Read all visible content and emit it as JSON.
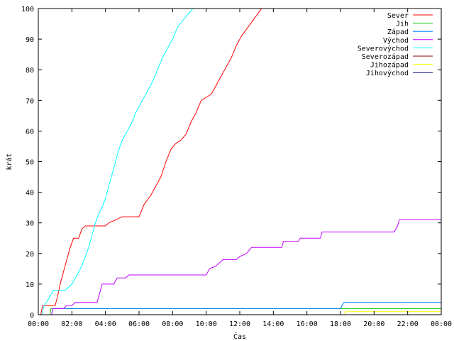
{
  "chart_data": {
    "type": "line",
    "title": "",
    "xlabel": "Čas",
    "ylabel": "krát",
    "xlim": [
      0,
      24
    ],
    "ylim": [
      0,
      100
    ],
    "x_unit": "hours",
    "x_ticks": [
      0,
      2,
      4,
      6,
      8,
      10,
      12,
      14,
      16,
      18,
      20,
      22,
      24
    ],
    "x_tick_labels": [
      "00:00",
      "02:00",
      "04:00",
      "06:00",
      "08:00",
      "10:00",
      "12:00",
      "14:00",
      "16:00",
      "18:00",
      "20:00",
      "22:00",
      "00:00"
    ],
    "y_ticks": [
      0,
      10,
      20,
      30,
      40,
      50,
      60,
      70,
      80,
      90,
      100
    ],
    "y_tick_labels": [
      "0",
      "10",
      "20",
      "30",
      "40",
      "50",
      "60",
      "70",
      "80",
      "90",
      "100"
    ],
    "grid": false,
    "legend_position": "top-right",
    "series": [
      {
        "name": "Sever",
        "color": "#ff0000",
        "points": [
          [
            0.15,
            0
          ],
          [
            0.25,
            3
          ],
          [
            1.0,
            3
          ],
          [
            1.15,
            6
          ],
          [
            1.3,
            10
          ],
          [
            1.5,
            14
          ],
          [
            1.7,
            18
          ],
          [
            1.9,
            22
          ],
          [
            2.1,
            25
          ],
          [
            2.4,
            25
          ],
          [
            2.6,
            28
          ],
          [
            2.8,
            29
          ],
          [
            4.0,
            29
          ],
          [
            4.2,
            30
          ],
          [
            4.6,
            31
          ],
          [
            5.0,
            32
          ],
          [
            6.0,
            32
          ],
          [
            6.3,
            36
          ],
          [
            6.7,
            39
          ],
          [
            7.0,
            42
          ],
          [
            7.3,
            45
          ],
          [
            7.6,
            50
          ],
          [
            7.9,
            54
          ],
          [
            8.2,
            56
          ],
          [
            8.5,
            57
          ],
          [
            8.8,
            59
          ],
          [
            9.1,
            63
          ],
          [
            9.4,
            66
          ],
          [
            9.7,
            70
          ],
          [
            10.0,
            71
          ],
          [
            10.3,
            72
          ],
          [
            10.6,
            75
          ],
          [
            10.9,
            78
          ],
          [
            11.2,
            81
          ],
          [
            11.5,
            84
          ],
          [
            11.8,
            88
          ],
          [
            12.1,
            91
          ],
          [
            12.5,
            94
          ],
          [
            12.9,
            97
          ],
          [
            13.3,
            100
          ],
          [
            13.5,
            100
          ]
        ]
      },
      {
        "name": "Jih",
        "color": "#00c000",
        "points": [
          [
            0.7,
            0
          ],
          [
            0.75,
            2
          ],
          [
            24,
            2
          ]
        ]
      },
      {
        "name": "Západ",
        "color": "#0080ff",
        "points": [
          [
            0.8,
            0
          ],
          [
            0.85,
            2
          ],
          [
            18.0,
            2
          ],
          [
            18.2,
            4
          ],
          [
            24,
            4
          ]
        ]
      },
      {
        "name": "Východ",
        "color": "#c000ff",
        "points": [
          [
            0.8,
            0
          ],
          [
            0.85,
            2
          ],
          [
            1.5,
            2
          ],
          [
            1.7,
            3
          ],
          [
            2.0,
            3
          ],
          [
            2.2,
            4
          ],
          [
            3.5,
            4
          ],
          [
            3.7,
            8
          ],
          [
            3.8,
            10
          ],
          [
            4.5,
            10
          ],
          [
            4.7,
            12
          ],
          [
            5.2,
            12
          ],
          [
            5.4,
            13
          ],
          [
            10.0,
            13
          ],
          [
            10.2,
            15
          ],
          [
            10.6,
            16
          ],
          [
            11.0,
            18
          ],
          [
            11.8,
            18
          ],
          [
            12.0,
            19
          ],
          [
            12.4,
            20
          ],
          [
            12.7,
            22
          ],
          [
            14.5,
            22
          ],
          [
            14.6,
            24
          ],
          [
            15.5,
            24
          ],
          [
            15.6,
            25
          ],
          [
            16.8,
            25
          ],
          [
            16.9,
            27
          ],
          [
            21.2,
            27
          ],
          [
            21.4,
            29
          ],
          [
            21.5,
            31
          ],
          [
            24,
            31
          ]
        ]
      },
      {
        "name": "Severovýchod",
        "color": "#00ffff",
        "points": [
          [
            0.2,
            0
          ],
          [
            0.35,
            3
          ],
          [
            0.6,
            5
          ],
          [
            0.9,
            8
          ],
          [
            1.6,
            8
          ],
          [
            1.8,
            9
          ],
          [
            2.0,
            10
          ],
          [
            2.2,
            12
          ],
          [
            2.4,
            14
          ],
          [
            2.6,
            16
          ],
          [
            2.8,
            19
          ],
          [
            3.0,
            22
          ],
          [
            3.2,
            26
          ],
          [
            3.4,
            30
          ],
          [
            3.6,
            33
          ],
          [
            3.8,
            35
          ],
          [
            4.0,
            38
          ],
          [
            4.2,
            42
          ],
          [
            4.4,
            46
          ],
          [
            4.6,
            50
          ],
          [
            4.8,
            54
          ],
          [
            5.0,
            57
          ],
          [
            5.2,
            59
          ],
          [
            5.4,
            61
          ],
          [
            5.6,
            63
          ],
          [
            5.8,
            66
          ],
          [
            6.0,
            68
          ],
          [
            6.2,
            70
          ],
          [
            6.5,
            73
          ],
          [
            6.8,
            76
          ],
          [
            7.1,
            80
          ],
          [
            7.4,
            84
          ],
          [
            7.7,
            87
          ],
          [
            8.0,
            90
          ],
          [
            8.3,
            94
          ],
          [
            8.6,
            96
          ],
          [
            8.9,
            98
          ],
          [
            9.2,
            100
          ],
          [
            9.4,
            100
          ]
        ]
      },
      {
        "name": "Severozápad",
        "color": "#800000",
        "points": []
      },
      {
        "name": "Jihozápad",
        "color": "#ffff00",
        "points": [
          [
            18.2,
            0
          ],
          [
            18.3,
            1
          ],
          [
            24,
            1
          ]
        ]
      },
      {
        "name": "Jihovýchod",
        "color": "#000080",
        "points": []
      }
    ]
  }
}
